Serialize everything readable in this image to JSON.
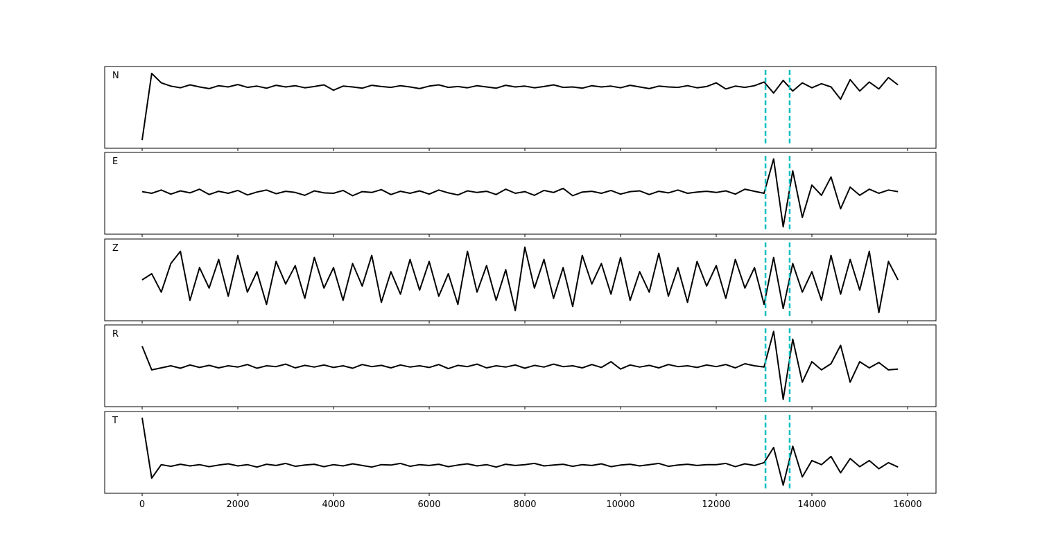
{
  "chart_data": {
    "type": "line",
    "xlim": [
      -783,
      16594
    ],
    "xticks": [
      0,
      2000,
      4000,
      6000,
      8000,
      10000,
      12000,
      14000,
      16000
    ],
    "xtick_labels": [
      "0",
      "2000",
      "4000",
      "6000",
      "8000",
      "10000",
      "12000",
      "14000",
      "16000"
    ],
    "ylim": [
      -1,
      1
    ],
    "grid": false,
    "line_color": "#000000",
    "marker_color": "#00bfbf",
    "vertical_markers": [
      13030,
      13535
    ],
    "x_start": 0,
    "x_step": 200,
    "panels": [
      {
        "label": "N",
        "values": [
          -0.8,
          0.83,
          0.6,
          0.52,
          0.48,
          0.55,
          0.5,
          0.46,
          0.53,
          0.5,
          0.56,
          0.49,
          0.52,
          0.47,
          0.54,
          0.5,
          0.53,
          0.48,
          0.51,
          0.55,
          0.42,
          0.52,
          0.5,
          0.47,
          0.54,
          0.51,
          0.49,
          0.53,
          0.5,
          0.46,
          0.52,
          0.55,
          0.49,
          0.51,
          0.48,
          0.53,
          0.5,
          0.47,
          0.54,
          0.5,
          0.52,
          0.48,
          0.51,
          0.55,
          0.49,
          0.5,
          0.47,
          0.53,
          0.5,
          0.52,
          0.48,
          0.54,
          0.5,
          0.46,
          0.52,
          0.5,
          0.49,
          0.53,
          0.48,
          0.51,
          0.6,
          0.45,
          0.52,
          0.49,
          0.53,
          0.62,
          0.35,
          0.66,
          0.4,
          0.6,
          0.48,
          0.58,
          0.5,
          0.2,
          0.68,
          0.4,
          0.62,
          0.45,
          0.73,
          0.55
        ]
      },
      {
        "label": "E",
        "values": [
          0.04,
          0.0,
          0.08,
          -0.02,
          0.06,
          0.01,
          0.1,
          -0.03,
          0.05,
          0.0,
          0.07,
          -0.04,
          0.03,
          0.08,
          -0.01,
          0.05,
          0.02,
          -0.05,
          0.06,
          0.01,
          0.0,
          0.07,
          -0.06,
          0.04,
          0.02,
          0.09,
          -0.03,
          0.05,
          0.0,
          0.06,
          -0.02,
          0.08,
          0.01,
          -0.04,
          0.06,
          0.02,
          0.05,
          -0.03,
          0.1,
          0.0,
          0.04,
          -0.05,
          0.07,
          0.02,
          0.12,
          -0.06,
          0.03,
          0.05,
          0.0,
          0.07,
          -0.02,
          0.04,
          0.06,
          -0.03,
          0.05,
          0.01,
          0.08,
          0.0,
          0.03,
          0.05,
          0.02,
          0.06,
          -0.02,
          0.1,
          0.05,
          0.0,
          0.84,
          -0.82,
          0.55,
          -0.59,
          0.2,
          -0.05,
          0.4,
          -0.38,
          0.15,
          -0.05,
          0.1,
          0.0,
          0.08,
          0.04
        ]
      },
      {
        "label": "Z",
        "values": [
          0.0,
          0.15,
          -0.3,
          0.4,
          0.7,
          -0.5,
          0.3,
          -0.2,
          0.5,
          -0.4,
          0.6,
          -0.3,
          0.2,
          -0.6,
          0.45,
          -0.1,
          0.35,
          -0.45,
          0.55,
          -0.2,
          0.3,
          -0.5,
          0.4,
          -0.15,
          0.6,
          -0.55,
          0.2,
          -0.35,
          0.5,
          -0.25,
          0.45,
          -0.4,
          0.15,
          -0.6,
          0.7,
          -0.3,
          0.35,
          -0.5,
          0.25,
          -0.75,
          0.8,
          -0.2,
          0.5,
          -0.45,
          0.3,
          -0.65,
          0.6,
          -0.1,
          0.4,
          -0.35,
          0.55,
          -0.5,
          0.2,
          -0.3,
          0.65,
          -0.4,
          0.3,
          -0.55,
          0.45,
          -0.15,
          0.35,
          -0.45,
          0.5,
          -0.2,
          0.3,
          -0.6,
          0.55,
          -0.7,
          0.4,
          -0.3,
          0.2,
          -0.5,
          0.6,
          -0.35,
          0.5,
          -0.25,
          0.7,
          -0.8,
          0.45,
          0.0
        ]
      },
      {
        "label": "R",
        "values": [
          0.48,
          -0.1,
          -0.05,
          0.0,
          -0.06,
          0.02,
          -0.04,
          0.01,
          -0.05,
          0.0,
          -0.03,
          0.03,
          -0.06,
          0.0,
          -0.02,
          0.04,
          -0.05,
          0.01,
          -0.03,
          0.02,
          -0.04,
          0.0,
          -0.06,
          0.03,
          -0.02,
          0.01,
          -0.05,
          0.02,
          -0.03,
          0.0,
          -0.04,
          0.03,
          -0.07,
          0.01,
          -0.02,
          0.04,
          -0.05,
          0.0,
          -0.03,
          0.02,
          -0.06,
          0.01,
          -0.03,
          0.04,
          -0.02,
          0.0,
          -0.05,
          0.03,
          -0.04,
          0.1,
          -0.08,
          0.02,
          -0.03,
          0.01,
          -0.05,
          0.03,
          -0.02,
          0.0,
          -0.04,
          0.02,
          -0.02,
          0.03,
          -0.05,
          0.05,
          0.0,
          -0.03,
          0.84,
          -0.82,
          0.65,
          -0.4,
          0.1,
          -0.1,
          0.05,
          0.5,
          -0.4,
          0.1,
          -0.05,
          0.08,
          -0.1,
          -0.08
        ]
      },
      {
        "label": "T",
        "values": [
          0.85,
          -0.63,
          -0.3,
          -0.34,
          -0.29,
          -0.33,
          -0.3,
          -0.35,
          -0.31,
          -0.28,
          -0.33,
          -0.3,
          -0.36,
          -0.29,
          -0.32,
          -0.27,
          -0.34,
          -0.31,
          -0.29,
          -0.35,
          -0.3,
          -0.33,
          -0.28,
          -0.32,
          -0.36,
          -0.3,
          -0.31,
          -0.27,
          -0.34,
          -0.3,
          -0.32,
          -0.29,
          -0.35,
          -0.31,
          -0.28,
          -0.33,
          -0.3,
          -0.36,
          -0.29,
          -0.32,
          -0.3,
          -0.27,
          -0.33,
          -0.31,
          -0.29,
          -0.34,
          -0.3,
          -0.32,
          -0.28,
          -0.35,
          -0.31,
          -0.29,
          -0.33,
          -0.3,
          -0.27,
          -0.34,
          -0.31,
          -0.29,
          -0.32,
          -0.3,
          -0.3,
          -0.27,
          -0.35,
          -0.28,
          -0.32,
          -0.25,
          0.12,
          -0.8,
          0.15,
          -0.6,
          -0.2,
          -0.3,
          -0.1,
          -0.5,
          -0.15,
          -0.35,
          -0.2,
          -0.4,
          -0.25,
          -0.36
        ]
      }
    ]
  }
}
